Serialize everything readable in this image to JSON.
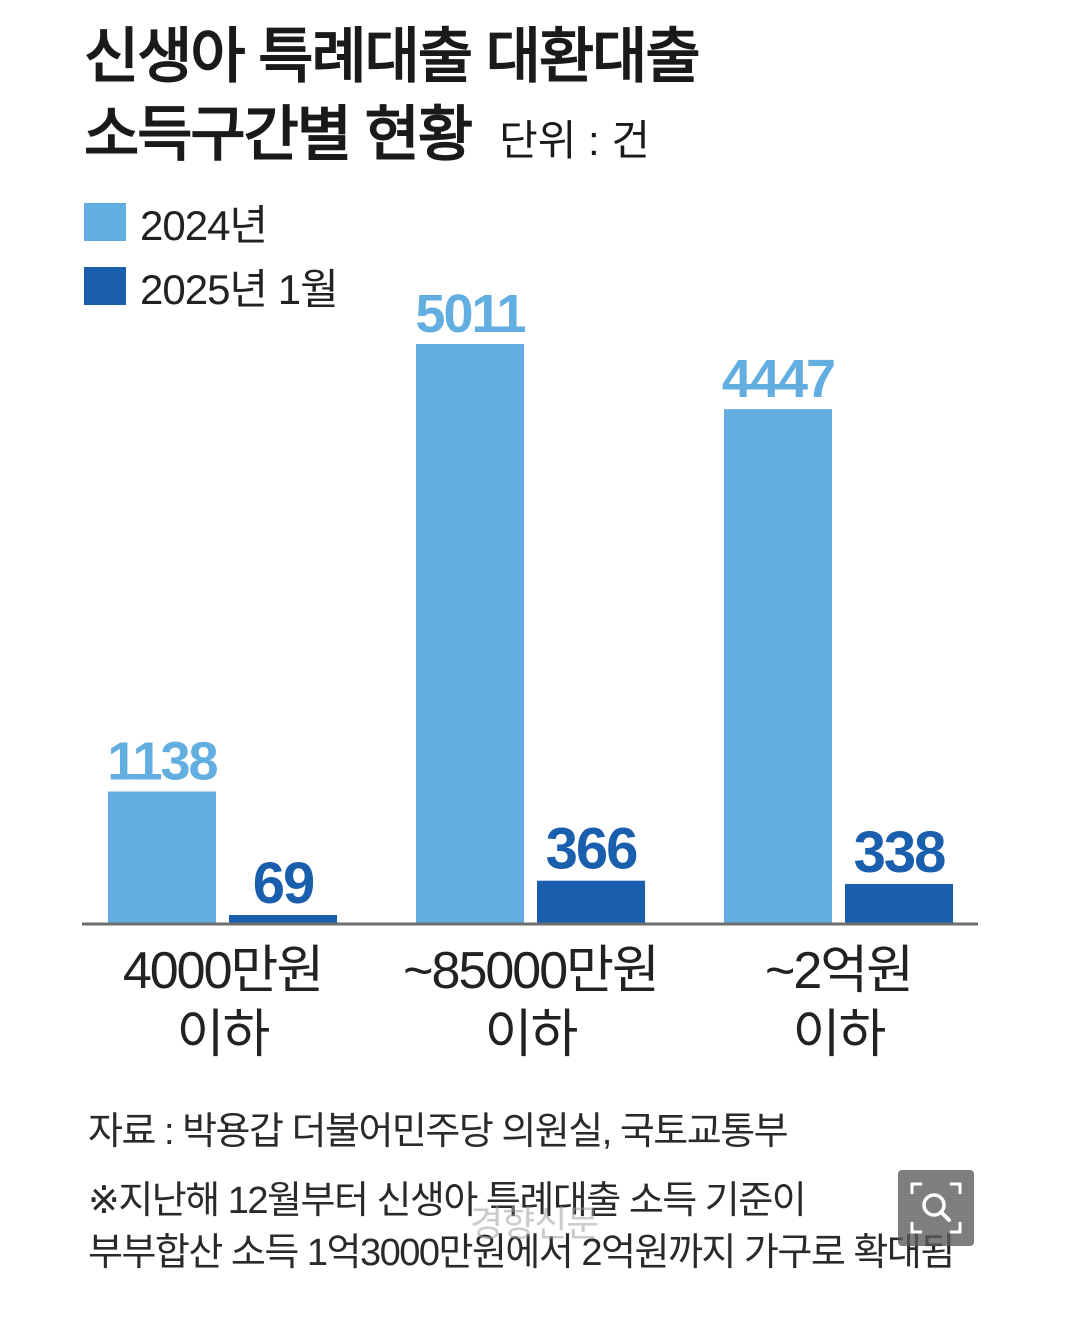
{
  "header": {
    "title_line1": "신생아 특례대출 대환대출",
    "title_line2": "소득구간별 현황",
    "unit": "단위 : 건"
  },
  "legend": [
    {
      "label": "2024년",
      "color": "#62aee0"
    },
    {
      "label": "2025년 1월",
      "color": "#1a5fad"
    }
  ],
  "chart_data": {
    "type": "bar",
    "categories": [
      [
        "4000만원",
        "이하"
      ],
      [
        "~85000만원",
        "이하"
      ],
      [
        "~2억원",
        "이하"
      ]
    ],
    "series": [
      {
        "name": "2024년",
        "color": "#62aee0",
        "label_color": "#62aee0",
        "values": [
          1138,
          5011,
          4447
        ]
      },
      {
        "name": "2025년 1월",
        "color": "#1a5fad",
        "label_color": "#1a5fad",
        "values": [
          69,
          366,
          338
        ]
      }
    ],
    "ylim": [
      0,
      5011
    ],
    "grid": false,
    "legend_position": "top-left"
  },
  "footer": {
    "source": "자료 : 박용갑 더불어민주당 의원실, 국토교통부",
    "note_line1": "※지난해 12월부터 신생아 특례대출 소득 기준이",
    "note_line2": "부부합산 소득 1억3000만원에서 2억원까지 가구로 확대됨"
  },
  "watermark": "경향신문",
  "zoom_icon": "magnifier-icon"
}
